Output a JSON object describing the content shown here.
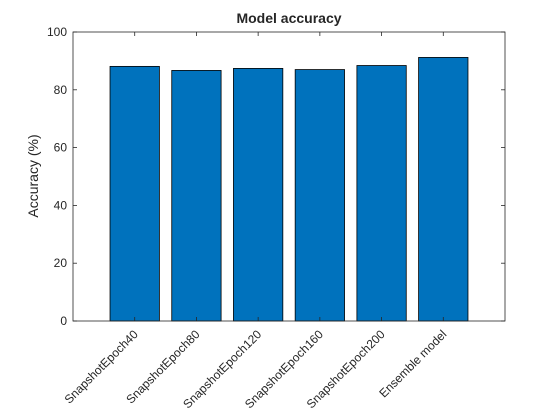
{
  "chart_data": {
    "type": "bar",
    "title": "Model accuracy",
    "xlabel": "",
    "ylabel": "Accuracy (%)",
    "categories": [
      "SnapshotEpoch40",
      "SnapshotEpoch80",
      "SnapshotEpoch120",
      "SnapshotEpoch160",
      "SnapshotEpoch200",
      "Ensemble model"
    ],
    "values": [
      88.1,
      86.7,
      87.4,
      87.0,
      88.4,
      91.2
    ],
    "ylim": [
      0,
      100
    ],
    "yticks": [
      "0",
      "20",
      "40",
      "60",
      "80",
      "100"
    ],
    "grid": false,
    "bar_color": "#0072BD",
    "edge_color": "#000000"
  }
}
